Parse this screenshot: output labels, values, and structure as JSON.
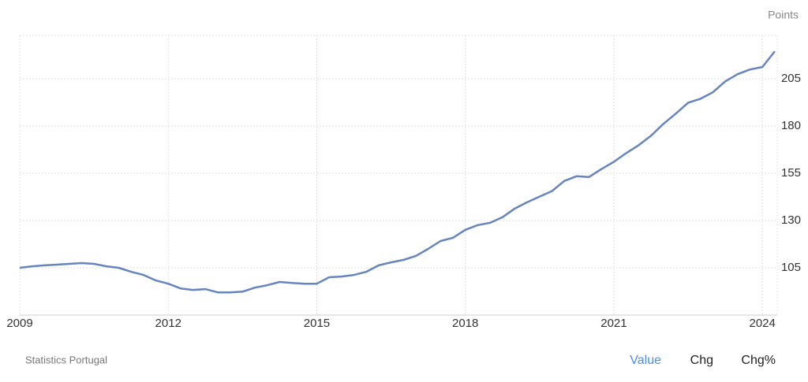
{
  "chart_data": {
    "type": "line",
    "y_axis_label": "Points",
    "source": "Statistics Portugal",
    "tabs": [
      "Value",
      "Chg",
      "Chg%"
    ],
    "active_tab_color": "#4a90e2",
    "x": [
      2009,
      2009.25,
      2009.5,
      2009.75,
      2010,
      2010.25,
      2010.5,
      2010.75,
      2011,
      2011.25,
      2011.5,
      2011.75,
      2012,
      2012.25,
      2012.5,
      2012.75,
      2013,
      2013.25,
      2013.5,
      2013.75,
      2014,
      2014.25,
      2014.5,
      2014.75,
      2015,
      2015.25,
      2015.5,
      2015.75,
      2016,
      2016.25,
      2016.5,
      2016.75,
      2017,
      2017.25,
      2017.5,
      2017.75,
      2018,
      2018.25,
      2018.5,
      2018.75,
      2019,
      2019.25,
      2019.5,
      2019.75,
      2020,
      2020.25,
      2020.5,
      2020.75,
      2021,
      2021.25,
      2021.5,
      2021.75,
      2022,
      2022.25,
      2022.5,
      2022.75,
      2023,
      2023.25,
      2023.5,
      2023.75,
      2024,
      2024.25
    ],
    "series": [
      {
        "name": "Value",
        "color": "#6584c0",
        "values": [
          105,
          105.8,
          106.3,
          106.7,
          107.1,
          107.5,
          107.1,
          105.8,
          105,
          102.9,
          101.2,
          98.3,
          96.6,
          94.1,
          93.3,
          93.7,
          92,
          92,
          92.4,
          94.5,
          95.8,
          97.5,
          97,
          96.6,
          96.6,
          100,
          100.4,
          101.2,
          102.9,
          106.3,
          107.9,
          109.2,
          111.3,
          115,
          119.2,
          120.9,
          125.1,
          127.6,
          128.8,
          131.8,
          136.4,
          139.7,
          142.7,
          145.6,
          151,
          153.5,
          153.1,
          157.3,
          161.1,
          165.7,
          169.9,
          174.9,
          181.2,
          186.6,
          192.4,
          194.5,
          197.9,
          203.7,
          207.5,
          210,
          211.3,
          219.6
        ]
      }
    ],
    "xlim": [
      2009,
      2024.3
    ],
    "xticks": [
      2009,
      2012,
      2015,
      2018,
      2021,
      2024
    ],
    "ylim": [
      80,
      228
    ],
    "yticks": [
      105,
      130,
      155,
      180,
      205
    ],
    "grid": true
  }
}
